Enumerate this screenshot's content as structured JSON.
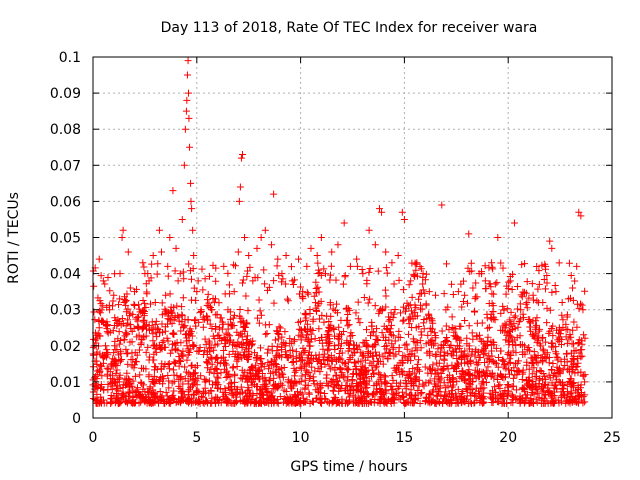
{
  "chart_data": {
    "type": "scatter",
    "title": "Day 113 of 2018, Rate Of TEC Index for receiver wara",
    "xlabel": "GPS time / hours",
    "ylabel": "ROTI / TECUs",
    "xlim": [
      0,
      25
    ],
    "ylim": [
      0,
      0.1
    ],
    "x_ticks": [
      0,
      5,
      10,
      15,
      20,
      25
    ],
    "y_ticks": [
      0,
      0.01,
      0.02,
      0.03,
      0.04,
      0.05,
      0.06,
      0.07,
      0.08,
      0.09,
      0.1
    ],
    "x_tick_labels": [
      "0",
      "5",
      "10",
      "15",
      "20",
      "25"
    ],
    "y_tick_labels": [
      "0",
      "0.01",
      "0.02",
      "0.03",
      "0.04",
      "0.05",
      "0.06",
      "0.07",
      "0.08",
      "0.09",
      "0.1"
    ],
    "grid": true,
    "marker": "+",
    "marker_color": "#ff0000",
    "data_x_range": [
      0,
      23.7
    ],
    "series": [
      {
        "name": "ROTI",
        "color": "#ff0000",
        "points": [
          [
            0.1,
            0.008
          ],
          [
            0.2,
            0.012
          ],
          [
            0.3,
            0.044
          ],
          [
            0.3,
            0.025
          ],
          [
            0.5,
            0.038
          ],
          [
            0.6,
            0.02
          ],
          [
            0.8,
            0.03
          ],
          [
            0.9,
            0.015
          ],
          [
            1.0,
            0.034
          ],
          [
            1.1,
            0.027
          ],
          [
            1.3,
            0.04
          ],
          [
            1.4,
            0.05
          ],
          [
            1.45,
            0.052
          ],
          [
            1.5,
            0.032
          ],
          [
            1.7,
            0.046
          ],
          [
            1.8,
            0.036
          ],
          [
            2.0,
            0.035
          ],
          [
            2.2,
            0.025
          ],
          [
            2.4,
            0.043
          ],
          [
            2.5,
            0.04
          ],
          [
            2.7,
            0.038
          ],
          [
            2.9,
            0.045
          ],
          [
            3.0,
            0.032
          ],
          [
            3.2,
            0.052
          ],
          [
            3.3,
            0.046
          ],
          [
            3.5,
            0.034
          ],
          [
            3.6,
            0.042
          ],
          [
            3.7,
            0.05
          ],
          [
            3.85,
            0.063
          ],
          [
            4.0,
            0.047
          ],
          [
            4.1,
            0.038
          ],
          [
            4.2,
            0.04
          ],
          [
            4.3,
            0.055
          ],
          [
            4.4,
            0.07
          ],
          [
            4.45,
            0.08
          ],
          [
            4.5,
            0.085
          ],
          [
            4.52,
            0.088
          ],
          [
            4.55,
            0.095
          ],
          [
            4.58,
            0.099
          ],
          [
            4.6,
            0.09
          ],
          [
            4.62,
            0.083
          ],
          [
            4.65,
            0.075
          ],
          [
            4.7,
            0.065
          ],
          [
            4.72,
            0.06
          ],
          [
            4.75,
            0.058
          ],
          [
            4.8,
            0.052
          ],
          [
            4.85,
            0.045
          ],
          [
            5.0,
            0.035
          ],
          [
            5.2,
            0.03
          ],
          [
            5.5,
            0.028
          ],
          [
            5.7,
            0.03
          ],
          [
            5.9,
            0.033
          ],
          [
            6.1,
            0.025
          ],
          [
            6.3,
            0.042
          ],
          [
            6.5,
            0.03
          ],
          [
            6.8,
            0.035
          ],
          [
            7.0,
            0.046
          ],
          [
            7.05,
            0.06
          ],
          [
            7.1,
            0.064
          ],
          [
            7.15,
            0.072
          ],
          [
            7.2,
            0.073
          ],
          [
            7.3,
            0.05
          ],
          [
            7.5,
            0.045
          ],
          [
            7.7,
            0.038
          ],
          [
            7.9,
            0.047
          ],
          [
            8.1,
            0.05
          ],
          [
            8.3,
            0.052
          ],
          [
            8.6,
            0.048
          ],
          [
            8.7,
            0.062
          ],
          [
            8.9,
            0.044
          ],
          [
            9.1,
            0.04
          ],
          [
            9.3,
            0.045
          ],
          [
            9.6,
            0.038
          ],
          [
            9.9,
            0.044
          ],
          [
            10.1,
            0.035
          ],
          [
            10.3,
            0.042
          ],
          [
            10.5,
            0.047
          ],
          [
            10.8,
            0.045
          ],
          [
            11.0,
            0.05
          ],
          [
            11.2,
            0.04
          ],
          [
            11.5,
            0.046
          ],
          [
            11.8,
            0.048
          ],
          [
            12.1,
            0.054
          ],
          [
            12.4,
            0.042
          ],
          [
            12.7,
            0.044
          ],
          [
            13.0,
            0.04
          ],
          [
            13.3,
            0.052
          ],
          [
            13.6,
            0.048
          ],
          [
            13.8,
            0.058
          ],
          [
            13.9,
            0.057
          ],
          [
            14.1,
            0.046
          ],
          [
            14.4,
            0.043
          ],
          [
            14.7,
            0.045
          ],
          [
            14.9,
            0.057
          ],
          [
            15.0,
            0.055
          ],
          [
            15.3,
            0.038
          ],
          [
            15.6,
            0.043
          ],
          [
            15.9,
            0.04
          ],
          [
            16.2,
            0.035
          ],
          [
            16.5,
            0.034
          ],
          [
            16.8,
            0.059
          ],
          [
            17.0,
            0.03
          ],
          [
            17.3,
            0.028
          ],
          [
            17.6,
            0.035
          ],
          [
            17.9,
            0.034
          ],
          [
            18.1,
            0.051
          ],
          [
            18.3,
            0.036
          ],
          [
            18.6,
            0.04
          ],
          [
            18.9,
            0.038
          ],
          [
            19.2,
            0.043
          ],
          [
            19.5,
            0.05
          ],
          [
            19.8,
            0.03
          ],
          [
            20.1,
            0.038
          ],
          [
            20.3,
            0.054
          ],
          [
            20.6,
            0.03
          ],
          [
            20.9,
            0.032
          ],
          [
            21.2,
            0.034
          ],
          [
            21.5,
            0.037
          ],
          [
            21.8,
            0.042
          ],
          [
            22.0,
            0.049
          ],
          [
            22.1,
            0.047
          ],
          [
            22.3,
            0.035
          ],
          [
            22.6,
            0.032
          ],
          [
            22.9,
            0.033
          ],
          [
            23.1,
            0.036
          ],
          [
            23.3,
            0.042
          ],
          [
            23.4,
            0.057
          ],
          [
            23.5,
            0.056
          ],
          [
            23.6,
            0.03
          ],
          [
            23.7,
            0.012
          ]
        ]
      }
    ]
  }
}
